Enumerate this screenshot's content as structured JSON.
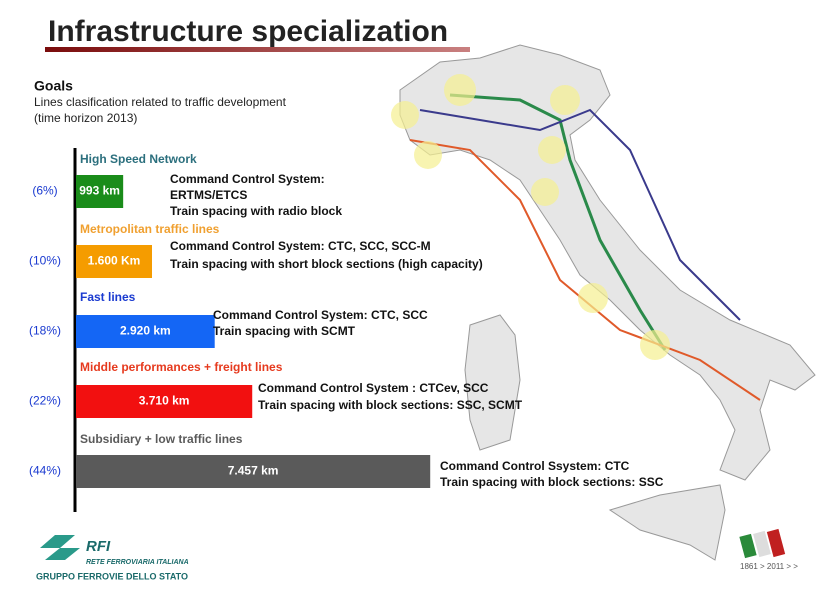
{
  "title": "Infrastructure specialization",
  "goals": {
    "heading": "Goals",
    "lines": [
      "Lines clasification related to traffic development",
      "(time horizon 2013)"
    ]
  },
  "chart_data": {
    "type": "bar",
    "orientation": "horizontal",
    "categories": [
      "High Speed Network",
      "Metropolitan traffic lines",
      "Fast  lines",
      "Middle performances + freight  lines",
      "Subsidiary + low traffic lines"
    ],
    "category_colors": [
      "#2b6f7d",
      "#f0a030",
      "#1a3ad0",
      "#e63a1e",
      "#5a5a5a"
    ],
    "values": [
      993,
      1600,
      2920,
      3710,
      7457
    ],
    "value_labels": [
      "993 km",
      "1.600  Km",
      "2.920 km",
      "3.710 km",
      "7.457 km"
    ],
    "colors": [
      "#1a8c1a",
      "#f59c00",
      "#1466f5",
      "#f21010",
      "#5a5a5a"
    ],
    "shares": [
      6,
      10,
      18,
      22,
      44
    ],
    "share_labels": [
      "(6%)",
      "(10%)",
      "(18%)",
      "(22%)",
      "(44%)"
    ],
    "descriptions": [
      [
        "Command Control System:",
        "ERTMS/ETCS",
        "Train spacing with radio block"
      ],
      [
        "Command Control System: CTC, SCC, SCC-M",
        "Train spacing with short block sections (high capacity)"
      ],
      [
        "Command Control System: CTC, SCC",
        "Train spacing with SCMT"
      ],
      [
        "Command Control System : CTCev, SCC",
        "Train spacing with block sections: SSC, SCMT"
      ],
      [
        "Command Control Ssystem: CTC",
        "Train spacing with block sections: SSC"
      ]
    ]
  },
  "logo": {
    "brand": "RFI",
    "name": "RETE FERROVIARIA ITALIANA",
    "group": "GRUPPO FERROVIE DELLO STATO"
  },
  "anniversary": "1861 > 2011 > >"
}
